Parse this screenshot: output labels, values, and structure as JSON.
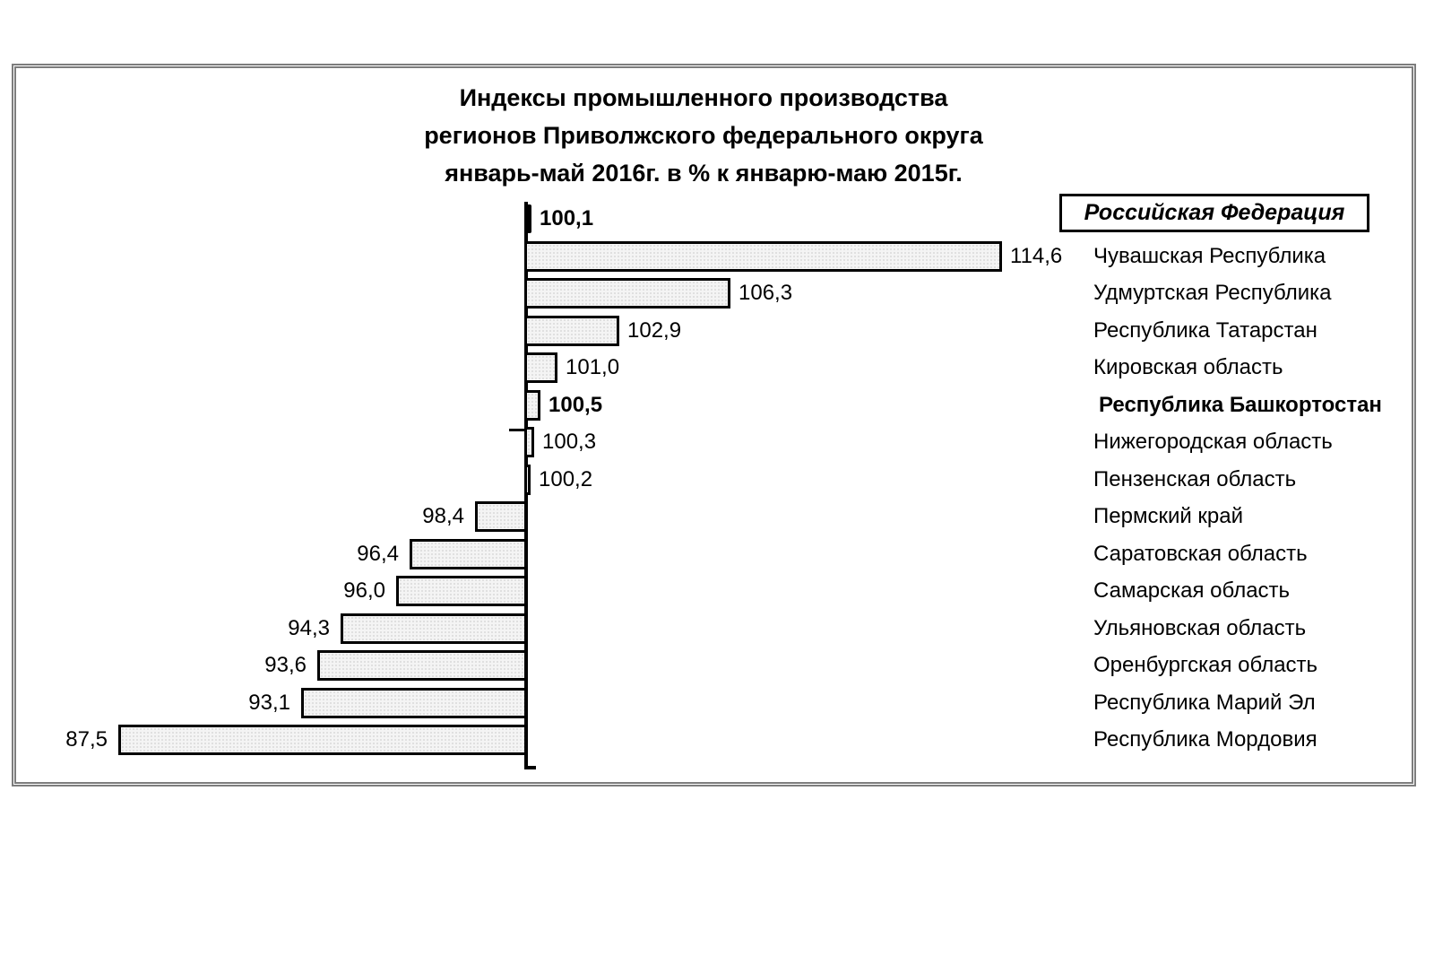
{
  "frame": {
    "border_color": "#7d7d7d"
  },
  "chart_data": {
    "type": "bar",
    "orientation": "horizontal",
    "baseline": 100,
    "xlim": [
      85,
      116
    ],
    "grid": false,
    "title": "Индексы промышленного производства регионов Приволжского федерального округа январь-май 2016г. в % к январю-маю 2015г.",
    "title_lines": [
      "Индексы промышленного производства",
      "регионов Приволжского федерального округа",
      "январь-май 2016г. в % к январю-маю 2015г."
    ],
    "legend_box_label": "Российская Федерация",
    "legend_position": "top-right",
    "bar_fill": "#f4f4f4",
    "bar_border": "#000000",
    "categories": [
      "Российская Федерация",
      "Чувашская Республика",
      "Удмуртская Республика",
      "Республика Татарстан",
      "Кировская область",
      "Республика Башкортостан",
      "Нижегородская область",
      "Пензенская область",
      "Пермский край",
      "Саратовская область",
      "Самарская область",
      "Ульяновская область",
      "Оренбургская область",
      "Республика Марий Эл",
      "Республика Мордовия"
    ],
    "values": [
      100.1,
      114.6,
      106.3,
      102.9,
      101.0,
      100.5,
      100.3,
      100.2,
      98.4,
      96.4,
      96.0,
      94.3,
      93.6,
      93.1,
      87.5
    ],
    "rows": [
      {
        "region": "Российская Федерация",
        "value": 100.1,
        "label": "100,1",
        "bold": true,
        "black": true,
        "in_legend_box": true
      },
      {
        "region": "Чувашская Республика",
        "value": 114.6,
        "label": "114,6",
        "bold": false,
        "black": false,
        "in_legend_box": false
      },
      {
        "region": "Удмуртская Республика",
        "value": 106.3,
        "label": "106,3",
        "bold": false,
        "black": false,
        "in_legend_box": false
      },
      {
        "region": "Республика Татарстан",
        "value": 102.9,
        "label": "102,9",
        "bold": false,
        "black": false,
        "in_legend_box": false
      },
      {
        "region": "Кировская область",
        "value": 101.0,
        "label": "101,0",
        "bold": false,
        "black": false,
        "in_legend_box": false
      },
      {
        "region": "Республика Башкортостан",
        "value": 100.5,
        "label": "100,5",
        "bold": true,
        "black": false,
        "in_legend_box": false
      },
      {
        "region": "Нижегородская область",
        "value": 100.3,
        "label": "100,3",
        "bold": false,
        "black": false,
        "in_legend_box": false
      },
      {
        "region": "Пензенская область",
        "value": 100.2,
        "label": "100,2",
        "bold": false,
        "black": false,
        "in_legend_box": false
      },
      {
        "region": "Пермский край",
        "value": 98.4,
        "label": "98,4",
        "bold": false,
        "black": false,
        "in_legend_box": false
      },
      {
        "region": "Саратовская область",
        "value": 96.4,
        "label": "96,4",
        "bold": false,
        "black": false,
        "in_legend_box": false
      },
      {
        "region": "Самарская область",
        "value": 96.0,
        "label": "96,0",
        "bold": false,
        "black": false,
        "in_legend_box": false
      },
      {
        "region": "Ульяновская область",
        "value": 94.3,
        "label": "94,3",
        "bold": false,
        "black": false,
        "in_legend_box": false
      },
      {
        "region": "Оренбургская область",
        "value": 93.6,
        "label": "93,6",
        "bold": false,
        "black": false,
        "in_legend_box": false
      },
      {
        "region": "Республика Марий Эл",
        "value": 93.1,
        "label": "93,1",
        "bold": false,
        "black": false,
        "in_legend_box": false
      },
      {
        "region": "Республика Мордовия",
        "value": 87.5,
        "label": "87,5",
        "bold": false,
        "black": false,
        "in_legend_box": false
      }
    ]
  }
}
